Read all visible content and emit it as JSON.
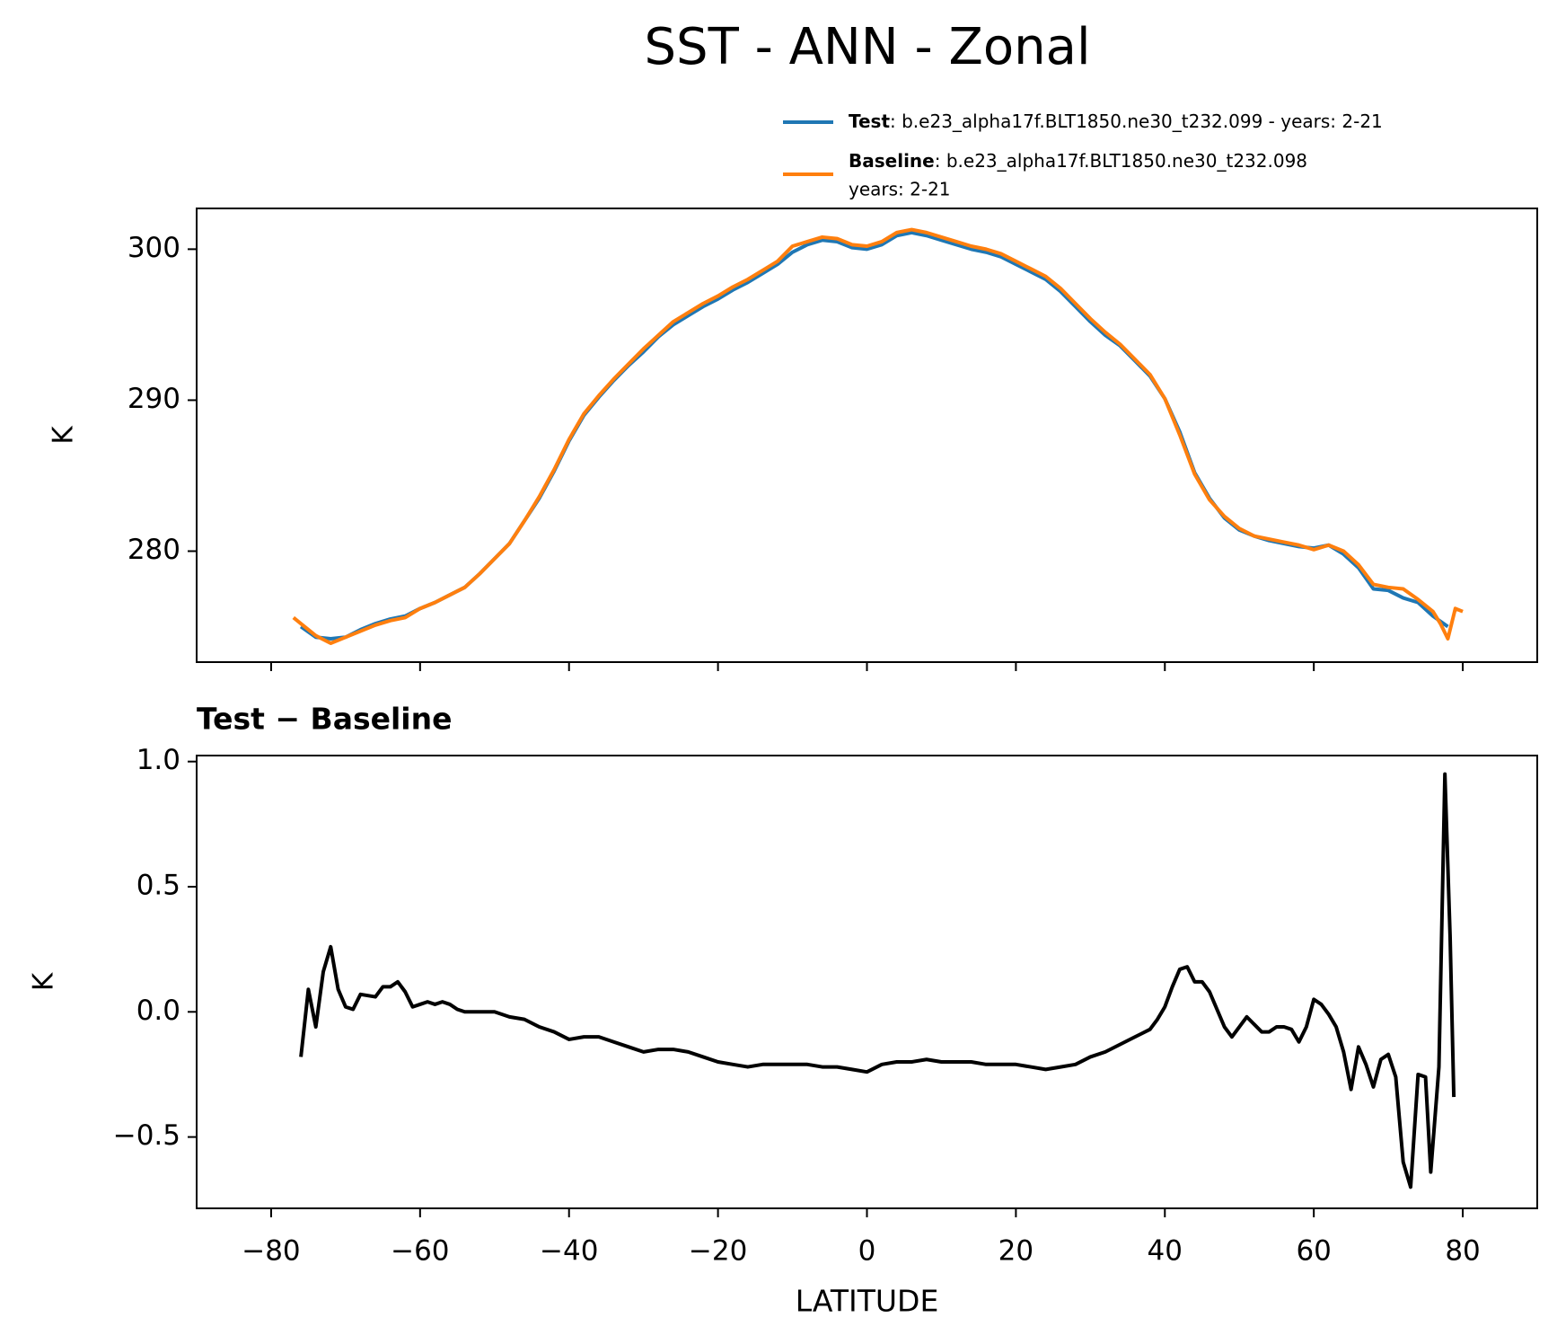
{
  "chart_data": [
    {
      "type": "line",
      "title": "SST - ANN - Zonal",
      "ylabel": "K",
      "xlim": [
        -90,
        90
      ],
      "ylim": [
        272.65,
        302.7
      ],
      "xticks": [
        -80,
        -60,
        -40,
        -20,
        0,
        20,
        40,
        60,
        80
      ],
      "show_xtick_labels": false,
      "yticks": [
        280,
        290,
        300
      ],
      "series": [
        {
          "name": "Test",
          "label": [
            ": b.e23_alpha17f.BLT1850.ne30_t232.099 - years: 2-21"
          ],
          "color": "#1f77b4",
          "x": [
            -76,
            -74,
            -72,
            -70,
            -68,
            -66,
            -64,
            -62,
            -60,
            -58,
            -56,
            -54,
            -52,
            -50,
            -48,
            -46,
            -44,
            -42,
            -40,
            -38,
            -36,
            -34,
            -32,
            -30,
            -28,
            -26,
            -24,
            -22,
            -20,
            -18,
            -16,
            -14,
            -12,
            -10,
            -8,
            -6,
            -4,
            -2,
            0,
            2,
            4,
            6,
            8,
            10,
            12,
            14,
            16,
            18,
            20,
            22,
            24,
            26,
            28,
            30,
            32,
            34,
            36,
            38,
            40,
            42,
            44,
            46,
            48,
            50,
            52,
            54,
            56,
            58,
            60,
            62,
            64,
            66,
            68,
            70,
            72,
            74,
            76,
            78
          ],
          "values": [
            275.0,
            274.3,
            274.2,
            274.3,
            274.8,
            275.2,
            275.5,
            275.7,
            276.2,
            276.6,
            277.1,
            277.6,
            278.5,
            279.5,
            280.5,
            282.0,
            283.5,
            285.3,
            287.3,
            289.0,
            290.2,
            291.3,
            292.3,
            293.2,
            294.2,
            295.0,
            295.6,
            296.2,
            296.7,
            297.3,
            297.8,
            298.4,
            299.0,
            299.8,
            300.3,
            300.6,
            300.5,
            300.1,
            300.0,
            300.3,
            300.9,
            301.1,
            300.9,
            300.6,
            300.3,
            300.0,
            299.8,
            299.5,
            299.0,
            298.5,
            298.0,
            297.2,
            296.2,
            295.2,
            294.3,
            293.6,
            292.6,
            291.6,
            290.1,
            287.9,
            285.2,
            283.5,
            282.2,
            281.4,
            281.0,
            280.7,
            280.5,
            280.3,
            280.2,
            280.4,
            279.8,
            278.9,
            277.5,
            277.4,
            276.9,
            276.6,
            275.7,
            275.0
          ]
        },
        {
          "name": "Baseline",
          "label": [
            ": b.e23_alpha17f.BLT1850.ne30_t232.098",
            "years: 2-21"
          ],
          "color": "#ff7f0e",
          "x": [
            -77,
            -76,
            -74,
            -72,
            -70,
            -68,
            -66,
            -64,
            -62,
            -60,
            -58,
            -56,
            -54,
            -52,
            -50,
            -48,
            -46,
            -44,
            -42,
            -40,
            -38,
            -36,
            -34,
            -32,
            -30,
            -28,
            -26,
            -24,
            -22,
            -20,
            -18,
            -16,
            -14,
            -12,
            -10,
            -8,
            -6,
            -4,
            -2,
            0,
            2,
            4,
            6,
            8,
            10,
            12,
            14,
            16,
            18,
            20,
            22,
            24,
            26,
            28,
            30,
            32,
            34,
            36,
            38,
            40,
            42,
            44,
            46,
            48,
            50,
            52,
            54,
            56,
            58,
            60,
            62,
            64,
            66,
            68,
            70,
            72,
            74,
            76,
            77,
            78,
            79,
            80
          ],
          "values": [
            275.6,
            275.2,
            274.4,
            273.9,
            274.3,
            274.7,
            275.1,
            275.4,
            275.6,
            276.2,
            276.6,
            277.1,
            277.6,
            278.5,
            279.5,
            280.5,
            282.0,
            283.6,
            285.4,
            287.4,
            289.1,
            290.3,
            291.4,
            292.4,
            293.4,
            294.3,
            295.2,
            295.8,
            296.4,
            296.9,
            297.5,
            298.0,
            298.6,
            299.2,
            300.2,
            300.5,
            300.8,
            300.7,
            300.3,
            300.2,
            300.5,
            301.1,
            301.3,
            301.1,
            300.8,
            300.5,
            300.2,
            300.0,
            299.7,
            299.2,
            298.7,
            298.2,
            297.4,
            296.4,
            295.4,
            294.5,
            293.7,
            292.7,
            291.7,
            290.1,
            287.7,
            285.1,
            283.4,
            282.3,
            281.5,
            281.0,
            280.8,
            280.6,
            280.4,
            280.1,
            280.4,
            280.0,
            279.1,
            277.8,
            277.6,
            277.5,
            276.8,
            276.0,
            275.2,
            274.2,
            276.2,
            276.0
          ]
        }
      ]
    },
    {
      "type": "line",
      "title": "Test − Baseline",
      "xlabel": "LATITUDE",
      "ylabel": "K",
      "color": "#000000",
      "xlim": [
        -90,
        90
      ],
      "ylim": [
        -0.785,
        1.024
      ],
      "xticks": [
        {
          "value": -80,
          "label": "−80"
        },
        {
          "value": -60,
          "label": "−60"
        },
        {
          "value": -40,
          "label": "−40"
        },
        {
          "value": -20,
          "label": "−20"
        },
        0,
        20,
        40,
        60,
        80
      ],
      "show_xtick_labels": true,
      "yticks": [
        {
          "value": 1,
          "label": "1.0"
        },
        0.5,
        {
          "value": 0,
          "label": "0.0"
        },
        {
          "value": -0.5,
          "label": "−0.5"
        }
      ],
      "x": [
        -76,
        -75,
        -74,
        -73,
        -72,
        -71,
        -70,
        -69,
        -68,
        -66,
        -65,
        -64,
        -63,
        -62,
        -61,
        -60,
        -59,
        -58,
        -57,
        -56,
        -55,
        -54,
        -52,
        -50,
        -48,
        -46,
        -44,
        -42,
        -40,
        -38,
        -36,
        -34,
        -32,
        -30,
        -28,
        -26,
        -24,
        -22,
        -20,
        -18,
        -16,
        -14,
        -12,
        -10,
        -8,
        -6,
        -4,
        -2,
        0,
        2,
        4,
        6,
        8,
        10,
        12,
        14,
        16,
        18,
        20,
        22,
        24,
        26,
        28,
        30,
        32,
        34,
        36,
        38,
        39,
        40,
        41,
        42,
        43,
        44,
        45,
        46,
        47,
        48,
        49,
        50,
        51,
        52,
        53,
        54,
        55,
        56,
        57,
        58,
        59,
        60,
        61,
        62,
        63,
        64,
        65,
        66,
        67,
        68,
        69,
        70,
        71,
        72,
        73,
        74,
        75,
        75.7,
        76.8,
        77.6,
        78.3,
        78.8
      ],
      "values": [
        -0.18,
        0.09,
        -0.06,
        0.16,
        0.26,
        0.09,
        0.02,
        0.01,
        0.07,
        0.06,
        0.1,
        0.1,
        0.12,
        0.08,
        0.02,
        0.03,
        0.04,
        0.03,
        0.04,
        0.03,
        0.01,
        0.0,
        0.0,
        0.0,
        -0.02,
        -0.03,
        -0.06,
        -0.08,
        -0.11,
        -0.1,
        -0.1,
        -0.12,
        -0.14,
        -0.16,
        -0.15,
        -0.15,
        -0.16,
        -0.18,
        -0.2,
        -0.21,
        -0.22,
        -0.21,
        -0.21,
        -0.21,
        -0.21,
        -0.22,
        -0.22,
        -0.23,
        -0.24,
        -0.21,
        -0.2,
        -0.2,
        -0.19,
        -0.2,
        -0.2,
        -0.2,
        -0.21,
        -0.21,
        -0.21,
        -0.22,
        -0.23,
        -0.22,
        -0.21,
        -0.18,
        -0.16,
        -0.13,
        -0.1,
        -0.07,
        -0.03,
        0.02,
        0.1,
        0.17,
        0.18,
        0.12,
        0.12,
        0.08,
        0.01,
        -0.06,
        -0.1,
        -0.06,
        -0.02,
        -0.05,
        -0.08,
        -0.08,
        -0.06,
        -0.06,
        -0.07,
        -0.12,
        -0.06,
        0.05,
        0.03,
        -0.01,
        -0.06,
        -0.16,
        -0.31,
        -0.14,
        -0.21,
        -0.3,
        -0.19,
        -0.17,
        -0.26,
        -0.6,
        -0.7,
        -0.25,
        -0.26,
        -0.64,
        -0.22,
        0.95,
        0.3,
        -0.34
      ]
    }
  ]
}
